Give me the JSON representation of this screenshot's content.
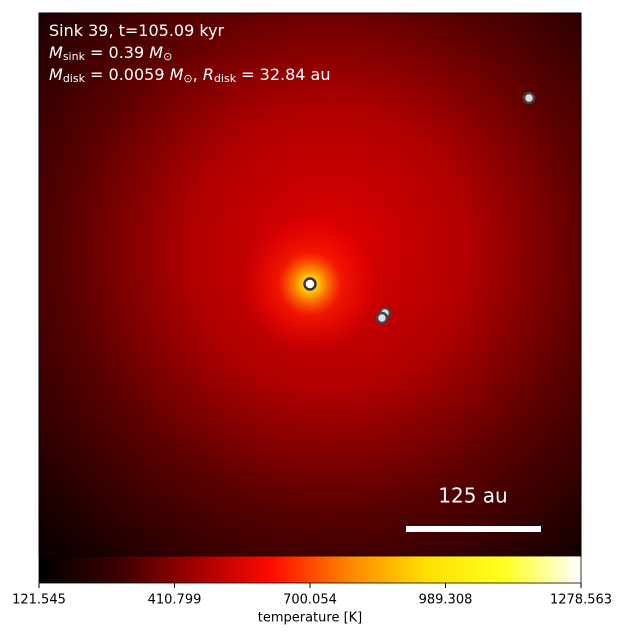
{
  "chart_data": {
    "type": "heatmap",
    "annotations": [
      [
        {
          "t": "Sink 39, t=105.09 kyr"
        }
      ],
      [
        {
          "t": "M",
          "i": true
        },
        {
          "t": "sink",
          "sub": true
        },
        {
          "t": " = 0.39 "
        },
        {
          "t": "M",
          "i": true
        },
        {
          "t": "⊙",
          "sub": true
        }
      ],
      [
        {
          "t": "M",
          "i": true
        },
        {
          "t": "disk",
          "sub": true
        },
        {
          "t": " = 0.0059 "
        },
        {
          "t": "M",
          "i": true
        },
        {
          "t": "⊙",
          "sub": true
        },
        {
          "t": ", "
        },
        {
          "t": "R",
          "i": true
        },
        {
          "t": "disk",
          "sub": true
        },
        {
          "t": " = 32.84 au"
        }
      ]
    ],
    "scale_bar_label": "125 au",
    "colorbar": {
      "label": "temperature [K]",
      "lim": [
        121.545,
        1278.563
      ],
      "ticks": [
        121.545,
        410.799,
        700.054,
        989.308,
        1278.563
      ],
      "colormap": [
        "#000000",
        "#3a0000",
        "#a00000",
        "#ff0a00",
        "#ff8400",
        "#ffe000",
        "#ffff20",
        "#ffffff"
      ]
    }
  }
}
